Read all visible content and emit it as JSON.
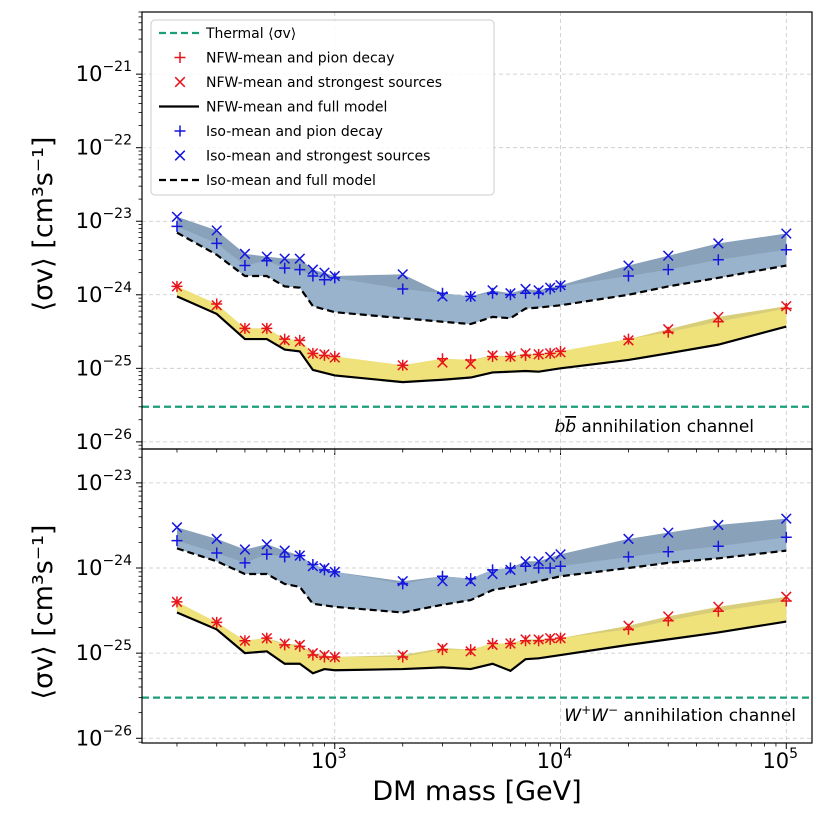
{
  "figure": {
    "xlabel": "DM mass [GeV]",
    "ylabel_top": "⟨σv⟩ [cm³s⁻¹]",
    "ylabel_bottom": "⟨σv⟩ [cm³s⁻¹]"
  },
  "legend": {
    "thermal": "Thermal ⟨σv⟩",
    "nfw_pion": "NFW-mean and  pion decay",
    "nfw_strong": "NFW-mean and  strongest sources",
    "nfw_full": "NFW-mean and full model",
    "iso_pion": "Iso-mean and  pion decay",
    "iso_strong": "Iso-mean and  strongest sources",
    "iso_full": "Iso-mean and full model"
  },
  "colors": {
    "thermal": "#1a9e77",
    "nfw": "#e8141c",
    "iso": "#1515e0",
    "nfw_band": "#f0e37a",
    "nfw_band_dark": "#d4c96a",
    "iso_band": "#9ab4cc",
    "iso_band_dark": "#7d98b1"
  },
  "chart_data": [
    {
      "type": "scatter",
      "panel": "top",
      "channel_label": "bb̄ annihilation channel",
      "channel_parts": [
        "b",
        "b",
        " annihilation channel"
      ],
      "x_scale": "log",
      "y_scale": "log",
      "xlim": [
        140,
        130000
      ],
      "ylim": [
        8e-27,
        7e-21
      ],
      "x_ticks": [
        {
          "value": 1000,
          "base": "10",
          "exp": "3"
        },
        {
          "value": 10000,
          "base": "10",
          "exp": "4"
        },
        {
          "value": 100000,
          "base": "10",
          "exp": "5"
        }
      ],
      "y_ticks": [
        {
          "value": 1e-26,
          "base": "10",
          "exp": "−26"
        },
        {
          "value": 1e-25,
          "base": "10",
          "exp": "−25"
        },
        {
          "value": 1e-24,
          "base": "10",
          "exp": "−24"
        },
        {
          "value": 1e-23,
          "base": "10",
          "exp": "−23"
        },
        {
          "value": 1e-22,
          "base": "10",
          "exp": "−22"
        },
        {
          "value": 1e-21,
          "base": "10",
          "exp": "−21"
        }
      ],
      "thermal": 3e-26,
      "series": [
        {
          "name": "NFW-mean and  pion decay",
          "x": [
            200,
            300,
            400,
            500,
            600,
            700,
            800,
            900,
            1000,
            2000,
            3000,
            4000,
            5000,
            6000,
            7000,
            8000,
            9000,
            10000,
            20000,
            30000,
            50000,
            100000
          ],
          "values": [
            1.3e-24,
            7.5e-25,
            3.5e-25,
            3.5e-25,
            2.5e-25,
            2.4e-25,
            1.6e-25,
            1.5e-25,
            1.45e-25,
            1.1e-25,
            1.35e-25,
            1.3e-25,
            1.45e-25,
            1.45e-25,
            1.5e-25,
            1.55e-25,
            1.6e-25,
            1.7e-25,
            2.5e-25,
            3.1e-25,
            4.3e-25,
            6.5e-25
          ]
        },
        {
          "name": "NFW-mean and  strongest sources",
          "x": [
            200,
            300,
            400,
            500,
            600,
            700,
            800,
            900,
            1000,
            2000,
            3000,
            4000,
            5000,
            6000,
            7000,
            8000,
            9000,
            10000,
            20000,
            30000,
            50000,
            100000
          ],
          "values": [
            1.3e-24,
            7.2e-25,
            3.5e-25,
            3.5e-25,
            2.4e-25,
            2.3e-25,
            1.6e-25,
            1.55e-25,
            1.4e-25,
            1.1e-25,
            1.2e-25,
            1.15e-25,
            1.5e-25,
            1.45e-25,
            1.6e-25,
            1.55e-25,
            1.6e-25,
            1.65e-25,
            2.4e-25,
            3.4e-25,
            5e-25,
            7e-25
          ]
        },
        {
          "name": "NFW-mean and full model",
          "x": [
            200,
            300,
            400,
            500,
            600,
            700,
            800,
            1000,
            2000,
            3000,
            4000,
            5000,
            6000,
            7000,
            8000,
            10000,
            20000,
            30000,
            50000,
            100000
          ],
          "values": [
            9.5e-25,
            5.5e-25,
            2.5e-25,
            2.5e-25,
            1.8e-25,
            1.7e-25,
            9.5e-26,
            8e-26,
            6.5e-26,
            7e-26,
            7.5e-26,
            8.8e-26,
            9e-26,
            9.2e-26,
            9e-26,
            1e-25,
            1.3e-25,
            1.6e-25,
            2.1e-25,
            3.7e-25
          ]
        },
        {
          "name": "Iso-mean and  pion decay",
          "x": [
            200,
            300,
            400,
            500,
            600,
            700,
            800,
            900,
            1000,
            2000,
            3000,
            4000,
            5000,
            6000,
            7000,
            8000,
            9000,
            10000,
            20000,
            30000,
            50000,
            100000
          ],
          "values": [
            8.5e-24,
            5e-24,
            2.5e-24,
            2.9e-24,
            2.3e-24,
            2.2e-24,
            1.8e-24,
            1.6e-24,
            1.7e-24,
            1.2e-24,
            1.05e-24,
            9.5e-25,
            1.05e-24,
            1e-24,
            1.05e-24,
            1.05e-24,
            1.2e-24,
            1.3e-24,
            1.8e-24,
            2.2e-24,
            3e-24,
            4.1e-24
          ]
        },
        {
          "name": "Iso-mean and  strongest sources",
          "x": [
            200,
            300,
            400,
            500,
            600,
            700,
            800,
            900,
            1000,
            2000,
            3000,
            4000,
            5000,
            6000,
            7000,
            8000,
            9000,
            10000,
            20000,
            30000,
            50000,
            100000
          ],
          "values": [
            1.15e-23,
            7.5e-24,
            3.6e-24,
            3.3e-24,
            3.1e-24,
            3.1e-24,
            2.2e-24,
            2e-24,
            1.8e-24,
            1.9e-24,
            9.5e-25,
            9.5e-25,
            1.15e-24,
            1.05e-24,
            1.2e-24,
            1.15e-24,
            1.25e-24,
            1.35e-24,
            2.5e-24,
            3.4e-24,
            5e-24,
            6.8e-24
          ]
        },
        {
          "name": "Iso-mean and full model",
          "x": [
            200,
            300,
            400,
            500,
            600,
            700,
            800,
            1000,
            2000,
            3000,
            4000,
            5000,
            6000,
            7000,
            8000,
            10000,
            20000,
            30000,
            50000,
            100000
          ],
          "values": [
            7e-24,
            3.5e-24,
            1.8e-24,
            1.8e-24,
            1.3e-24,
            1.25e-24,
            7e-25,
            5.8e-25,
            4.8e-25,
            4.3e-25,
            4e-25,
            5e-25,
            4.8e-25,
            6.5e-25,
            6.7e-25,
            7.2e-25,
            1e-24,
            1.3e-24,
            1.7e-24,
            2.5e-24
          ]
        }
      ]
    },
    {
      "type": "scatter",
      "panel": "bottom",
      "channel_label": "W⁺W⁻ annihilation channel",
      "channel_parts": [
        "W",
        "+",
        "W",
        "−",
        " annihilation channel"
      ],
      "x_scale": "log",
      "y_scale": "log",
      "xlim": [
        140,
        130000
      ],
      "ylim": [
        8.8e-27,
        2.5e-23
      ],
      "x_ticks": [
        {
          "value": 1000,
          "base": "10",
          "exp": "3"
        },
        {
          "value": 10000,
          "base": "10",
          "exp": "4"
        },
        {
          "value": 100000,
          "base": "10",
          "exp": "5"
        }
      ],
      "y_ticks": [
        {
          "value": 1e-26,
          "base": "10",
          "exp": "−26"
        },
        {
          "value": 1e-25,
          "base": "10",
          "exp": "−25"
        },
        {
          "value": 1e-24,
          "base": "10",
          "exp": "−24"
        },
        {
          "value": 1e-23,
          "base": "10",
          "exp": "−23"
        }
      ],
      "thermal": 3e-26,
      "series": [
        {
          "name": "NFW-mean and  pion decay",
          "x": [
            200,
            300,
            400,
            500,
            600,
            700,
            800,
            900,
            1000,
            2000,
            3000,
            4000,
            5000,
            6000,
            7000,
            8000,
            9000,
            10000,
            20000,
            30000,
            50000,
            100000
          ],
          "values": [
            4e-25,
            2.3e-25,
            1.4e-25,
            1.5e-25,
            1.25e-25,
            1.2e-25,
            9.5e-26,
            9e-26,
            9e-26,
            9e-26,
            1.1e-25,
            1.1e-25,
            1.3e-25,
            1.3e-25,
            1.4e-25,
            1.4e-25,
            1.45e-25,
            1.5e-25,
            1.9e-25,
            2.4e-25,
            3.1e-25,
            4.1e-25
          ]
        },
        {
          "name": "NFW-mean and  strongest sources",
          "x": [
            200,
            300,
            400,
            500,
            600,
            700,
            800,
            900,
            1000,
            2000,
            3000,
            4000,
            5000,
            6000,
            7000,
            8000,
            9000,
            10000,
            20000,
            30000,
            50000,
            100000
          ],
          "values": [
            4e-25,
            2.3e-25,
            1.4e-25,
            1.5e-25,
            1.3e-25,
            1.25e-25,
            1e-25,
            9.5e-26,
            9e-26,
            9.5e-26,
            1.15e-25,
            1.05e-25,
            1.25e-25,
            1.3e-25,
            1.45e-25,
            1.45e-25,
            1.5e-25,
            1.5e-25,
            2.1e-25,
            2.7e-25,
            3.5e-25,
            4.6e-25
          ]
        },
        {
          "name": "NFW-mean and full model",
          "x": [
            200,
            300,
            400,
            500,
            600,
            700,
            800,
            900,
            1000,
            2000,
            3000,
            4000,
            5000,
            6000,
            7000,
            8000,
            10000,
            20000,
            30000,
            50000,
            100000
          ],
          "values": [
            3e-25,
            1.9e-25,
            1e-25,
            1.05e-25,
            7.5e-26,
            7.5e-26,
            5.8e-26,
            6.5e-26,
            6.3e-26,
            6.5e-26,
            6.8e-26,
            6.5e-26,
            7.5e-26,
            6.2e-26,
            8.5e-26,
            8.7e-26,
            9.5e-26,
            1.25e-25,
            1.45e-25,
            1.75e-25,
            2.35e-25
          ]
        },
        {
          "name": "Iso-mean and  pion decay",
          "x": [
            200,
            300,
            400,
            500,
            600,
            700,
            800,
            900,
            1000,
            2000,
            3000,
            4000,
            5000,
            6000,
            7000,
            8000,
            9000,
            10000,
            20000,
            30000,
            50000,
            100000
          ],
          "values": [
            2.1e-24,
            1.5e-24,
            1.15e-24,
            1.45e-24,
            1.35e-24,
            1.4e-24,
            1.1e-24,
            9.5e-25,
            9e-25,
            6.5e-25,
            8e-25,
            7.5e-25,
            9.5e-25,
            1e-24,
            1.05e-24,
            1e-24,
            1e-24,
            1.05e-24,
            1.35e-24,
            1.55e-24,
            1.8e-24,
            2.3e-24
          ]
        },
        {
          "name": "Iso-mean and  strongest sources",
          "x": [
            200,
            300,
            400,
            500,
            600,
            700,
            800,
            900,
            1000,
            2000,
            3000,
            4000,
            5000,
            6000,
            7000,
            8000,
            9000,
            10000,
            20000,
            30000,
            50000,
            100000
          ],
          "values": [
            3e-24,
            2.2e-24,
            1.65e-24,
            1.9e-24,
            1.6e-24,
            1.4e-24,
            1.05e-24,
            1e-24,
            9e-25,
            7e-25,
            7e-25,
            7e-25,
            8.5e-25,
            9.5e-25,
            1.2e-24,
            1.2e-24,
            1.35e-24,
            1.45e-24,
            2.2e-24,
            2.6e-24,
            3.2e-24,
            3.8e-24
          ]
        },
        {
          "name": "Iso-mean and full model",
          "x": [
            200,
            300,
            400,
            500,
            600,
            700,
            800,
            1000,
            2000,
            3000,
            4000,
            5000,
            6000,
            7000,
            8000,
            10000,
            20000,
            30000,
            50000,
            100000
          ],
          "values": [
            1.7e-24,
            1.2e-24,
            8.5e-25,
            8.5e-25,
            6.5e-25,
            6e-25,
            3.8e-25,
            3.5e-25,
            3e-25,
            3.7e-25,
            4.2e-25,
            5.5e-25,
            6e-25,
            6.5e-25,
            7e-25,
            8e-25,
            1e-24,
            1.15e-24,
            1.3e-24,
            1.6e-24
          ]
        }
      ]
    }
  ]
}
